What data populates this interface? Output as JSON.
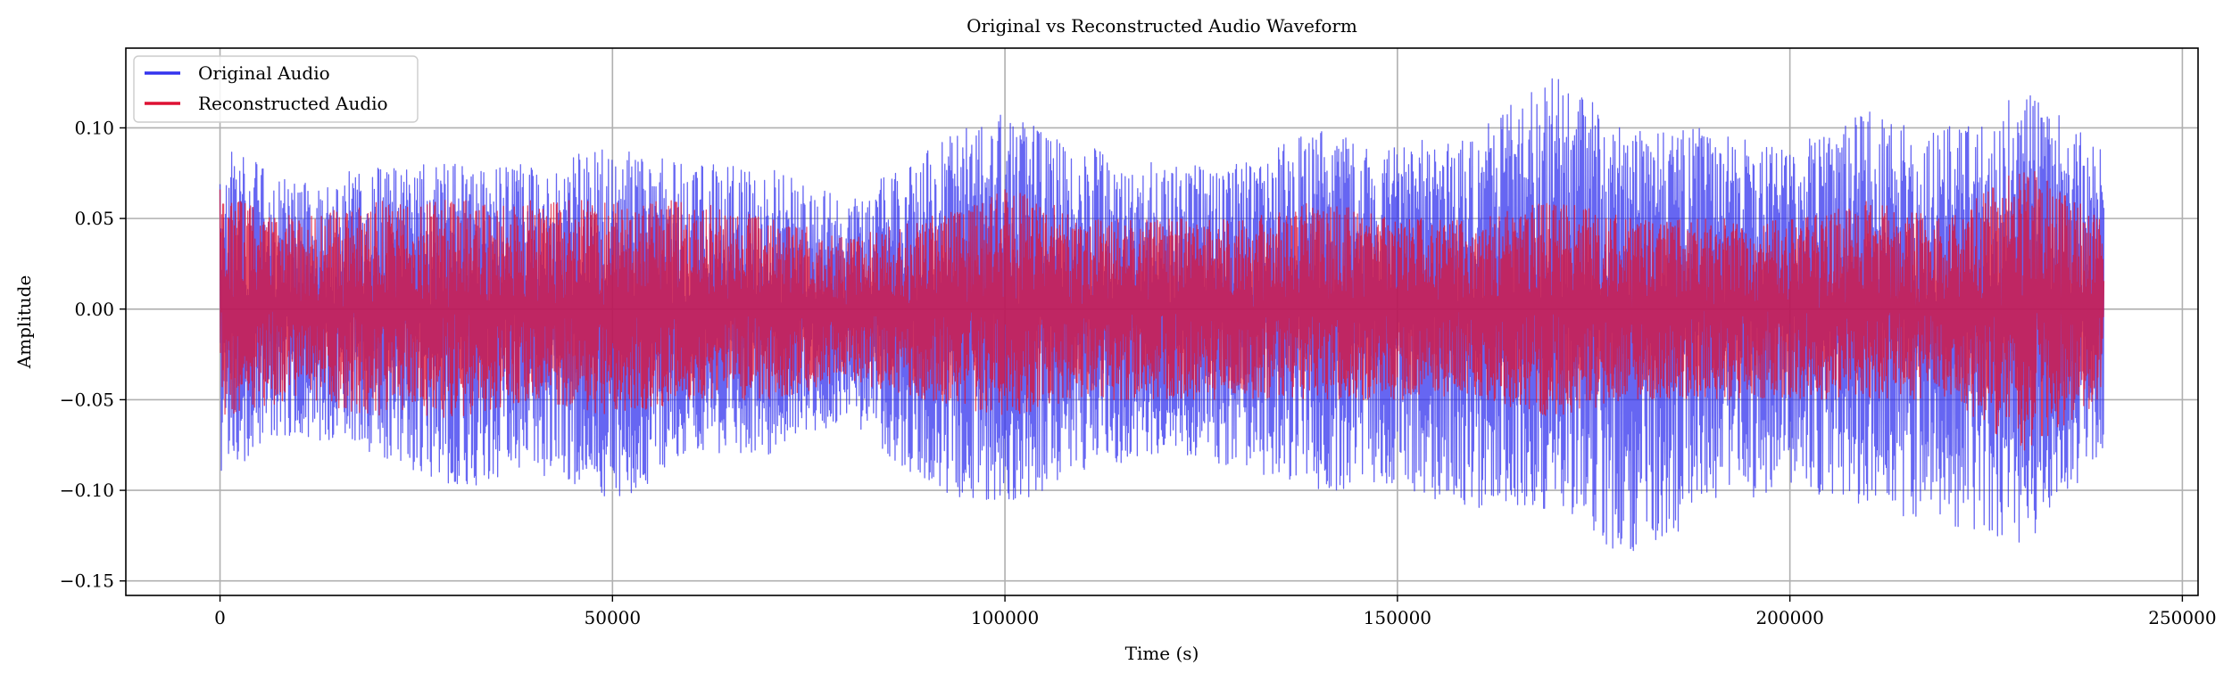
{
  "chart_data": {
    "type": "line",
    "title": "Original vs Reconstructed Audio Waveform",
    "xlabel": "Time (s)",
    "ylabel": "Amplitude",
    "xlim": [
      -12000,
      252000
    ],
    "ylim": [
      -0.158,
      0.144
    ],
    "x_ticks": [
      0,
      50000,
      100000,
      150000,
      200000,
      250000
    ],
    "x_tick_labels": [
      "0",
      "50000",
      "100000",
      "150000",
      "200000",
      "250000"
    ],
    "y_ticks": [
      -0.15,
      -0.1,
      -0.05,
      0.0,
      0.05,
      0.1
    ],
    "y_tick_labels": [
      "−0.15",
      "−0.10",
      "−0.05",
      "0.00",
      "0.05",
      "0.10"
    ],
    "grid": true,
    "legend_position": "top-left",
    "x_range": [
      0,
      240000
    ],
    "envelope_points": [
      0,
      10000,
      20000,
      30000,
      40000,
      50000,
      60000,
      70000,
      80000,
      90000,
      100000,
      110000,
      120000,
      130000,
      140000,
      150000,
      160000,
      170000,
      180000,
      190000,
      200000,
      210000,
      220000,
      230000,
      240000
    ],
    "series": [
      {
        "name": "Original Audio",
        "color": "#3333ee",
        "envelope_upper": [
          0.09,
          0.07,
          0.08,
          0.08,
          0.08,
          0.09,
          0.08,
          0.08,
          0.06,
          0.09,
          0.11,
          0.09,
          0.08,
          0.08,
          0.1,
          0.09,
          0.1,
          0.13,
          0.1,
          0.1,
          0.09,
          0.11,
          0.1,
          0.12,
          0.09
        ],
        "envelope_lower": [
          -0.09,
          -0.07,
          -0.08,
          -0.1,
          -0.09,
          -0.11,
          -0.08,
          -0.08,
          -0.06,
          -0.1,
          -0.11,
          -0.09,
          -0.08,
          -0.09,
          -0.1,
          -0.1,
          -0.11,
          -0.11,
          -0.14,
          -0.11,
          -0.1,
          -0.11,
          -0.12,
          -0.13,
          -0.08
        ]
      },
      {
        "name": "Reconstructed Audio",
        "color": "#dd1133",
        "envelope_upper": [
          0.07,
          0.05,
          0.06,
          0.06,
          0.06,
          0.06,
          0.06,
          0.05,
          0.04,
          0.05,
          0.07,
          0.05,
          0.05,
          0.05,
          0.06,
          0.05,
          0.05,
          0.06,
          0.05,
          0.05,
          0.05,
          0.06,
          0.05,
          0.08,
          0.05
        ],
        "envelope_lower": [
          -0.06,
          -0.05,
          -0.06,
          -0.06,
          -0.05,
          -0.06,
          -0.05,
          -0.05,
          -0.04,
          -0.05,
          -0.06,
          -0.05,
          -0.05,
          -0.05,
          -0.05,
          -0.05,
          -0.05,
          -0.06,
          -0.05,
          -0.05,
          -0.05,
          -0.05,
          -0.05,
          -0.08,
          -0.05
        ]
      }
    ]
  }
}
